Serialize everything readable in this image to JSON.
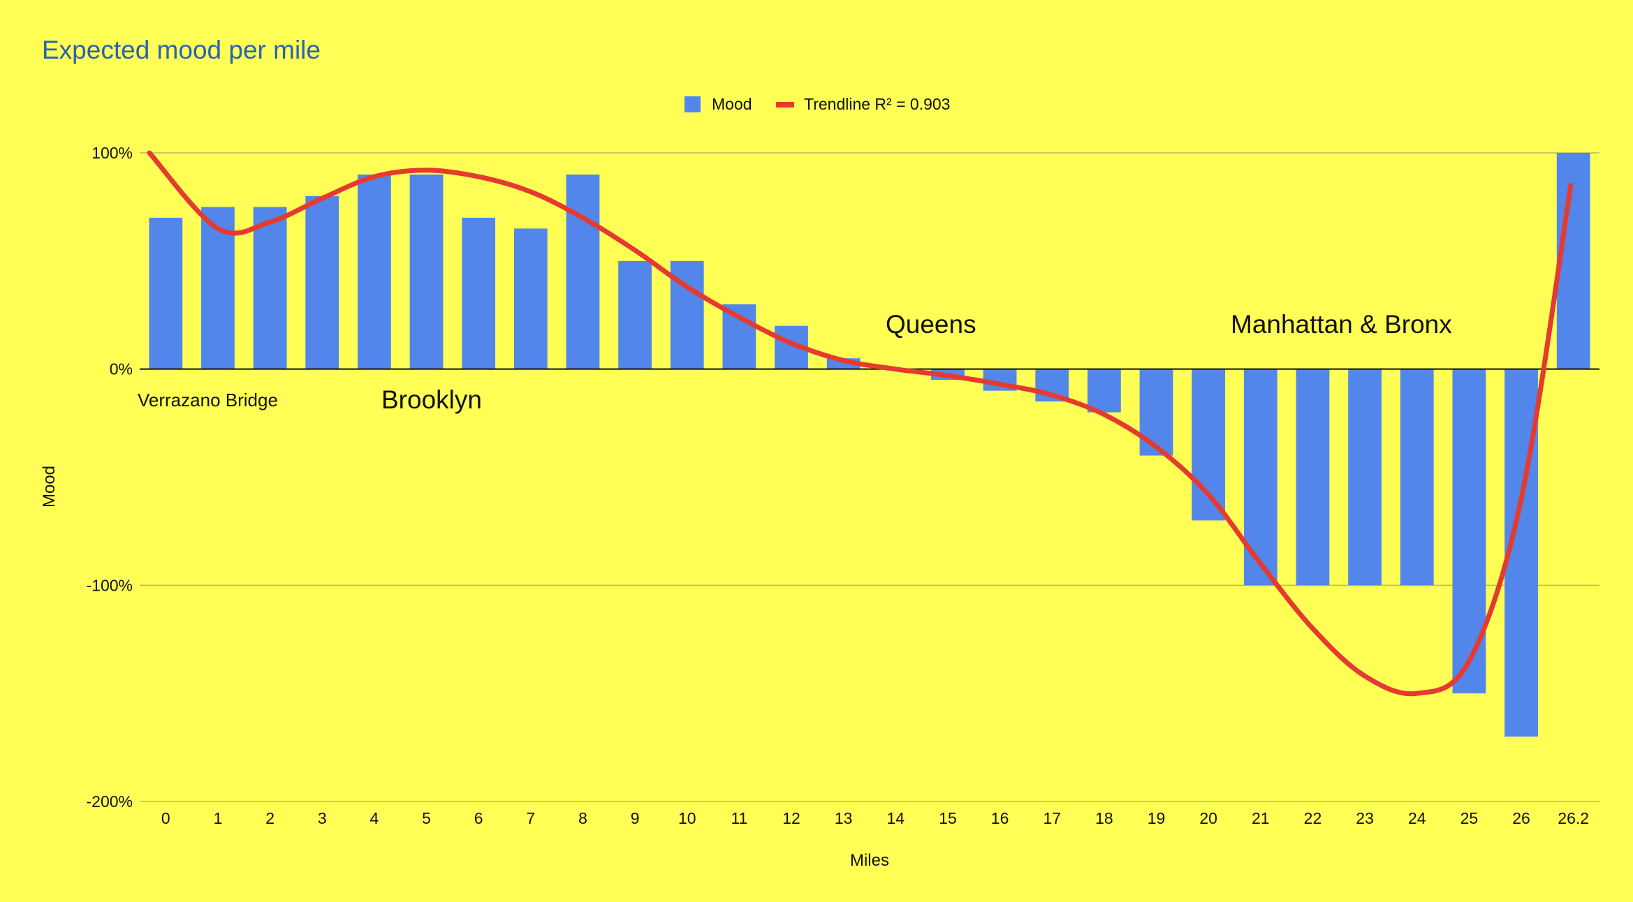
{
  "chart_data": {
    "type": "bar",
    "title": "Expected mood per mile",
    "xlabel": "Miles",
    "ylabel": "Mood",
    "ylim": [
      -2.0,
      1.0
    ],
    "y_ticks": [
      {
        "value": 1.0,
        "label": "100%"
      },
      {
        "value": 0.0,
        "label": "0%"
      },
      {
        "value": -1.0,
        "label": "-100%"
      },
      {
        "value": -2.0,
        "label": "-200%"
      }
    ],
    "categories": [
      "0",
      "1",
      "2",
      "3",
      "4",
      "5",
      "6",
      "7",
      "8",
      "9",
      "10",
      "11",
      "12",
      "13",
      "14",
      "15",
      "16",
      "17",
      "18",
      "19",
      "20",
      "21",
      "22",
      "23",
      "24",
      "25",
      "26",
      "26.2"
    ],
    "series": [
      {
        "name": "Mood",
        "type": "bar",
        "color": "#5286eb",
        "values": [
          0.7,
          0.75,
          0.75,
          0.8,
          0.9,
          0.9,
          0.7,
          0.65,
          0.9,
          0.5,
          0.5,
          0.3,
          0.2,
          0.05,
          0.0,
          -0.05,
          -0.1,
          -0.15,
          -0.2,
          -0.4,
          -0.7,
          -1.0,
          -1.0,
          -1.0,
          -1.0,
          -1.5,
          -1.7,
          1.0
        ]
      }
    ],
    "trendline": {
      "name": "Trendline R² = 0.903",
      "color": "#e53a2f",
      "x": [
        0,
        1,
        2,
        3,
        4,
        5,
        6,
        7,
        8,
        9,
        10,
        11,
        12,
        13,
        14,
        15,
        16,
        17,
        18,
        19,
        20,
        21,
        22,
        23,
        24,
        25,
        26,
        26.2
      ],
      "values": [
        1.0,
        0.65,
        0.68,
        0.79,
        0.89,
        0.92,
        0.89,
        0.82,
        0.7,
        0.55,
        0.38,
        0.24,
        0.12,
        0.04,
        0.0,
        -0.03,
        -0.07,
        -0.12,
        -0.21,
        -0.36,
        -0.58,
        -0.9,
        -1.2,
        -1.42,
        -1.5,
        -1.35,
        -0.6,
        0.85
      ]
    },
    "legend": {
      "position": "top-center",
      "items": [
        "Mood",
        "Trendline R² = 0.903"
      ]
    },
    "grid": true,
    "annotations": [
      "Verrazano Bridge",
      "Brooklyn",
      "Queens",
      "Manhattan & Bronx"
    ]
  }
}
